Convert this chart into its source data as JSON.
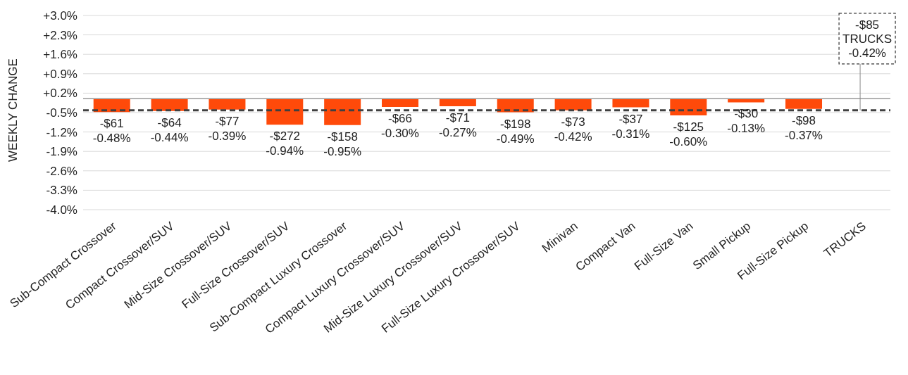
{
  "chart_data": {
    "type": "bar",
    "ylabel": "WEEKLY CHANGE",
    "categories": [
      "Sub-Compact Crossover",
      "Compact Crossover/SUV",
      "Mid-Size Crossover/SUV",
      "Full-Size Crossover/SUV",
      "Sub-Compact Luxury Crossover",
      "Compact Luxury Crossover/SUV",
      "Mid-Size Luxury Crossover/SUV",
      "Full-Size Luxury Crossover/SUV",
      "Minivan",
      "Compact Van",
      "Full-Size Van",
      "Small Pickup",
      "Full-Size Pickup",
      "TRUCKS"
    ],
    "values": [
      -0.48,
      -0.44,
      -0.39,
      -0.94,
      -0.95,
      -0.3,
      -0.27,
      -0.49,
      -0.42,
      -0.31,
      -0.6,
      -0.13,
      -0.37,
      null
    ],
    "value_labels": [
      "-$61\n-0.48%",
      "-$64\n-0.44%",
      "-$77\n-0.39%",
      "-$272\n-0.94%",
      "-$158\n-0.95%",
      "-$66\n-0.30%",
      "-$71\n-0.27%",
      "-$198\n-0.49%",
      "-$73\n-0.42%",
      "-$37\n-0.31%",
      "-$125\n-0.60%",
      "-$30\n-0.13%",
      "-$98\n-0.37%",
      null
    ],
    "color": "#ff4a0a",
    "ylim": [
      -4.0,
      3.0
    ],
    "yticks": [
      {
        "value": 3.0,
        "label": "+3.0%"
      },
      {
        "value": 2.3,
        "label": "+2.3%"
      },
      {
        "value": 1.6,
        "label": "+1.6%"
      },
      {
        "value": 0.9,
        "label": "+0.9%"
      },
      {
        "value": 0.2,
        "label": "+0.2%"
      },
      {
        "value": -0.5,
        "label": "-0.5%"
      },
      {
        "value": -1.2,
        "label": "-1.2%"
      },
      {
        "value": -1.9,
        "label": "-1.9%"
      },
      {
        "value": -2.6,
        "label": "-2.6%"
      },
      {
        "value": -3.3,
        "label": "-3.3%"
      },
      {
        "value": -4.0,
        "label": "-4.0%"
      }
    ],
    "grid": "y",
    "legend": false,
    "ref_lines": [
      {
        "axis": "y",
        "value": -0.42,
        "label": "-$85\nTRUCKS\n-0.42%",
        "color": "#404040",
        "line_style": "dashed"
      }
    ]
  }
}
